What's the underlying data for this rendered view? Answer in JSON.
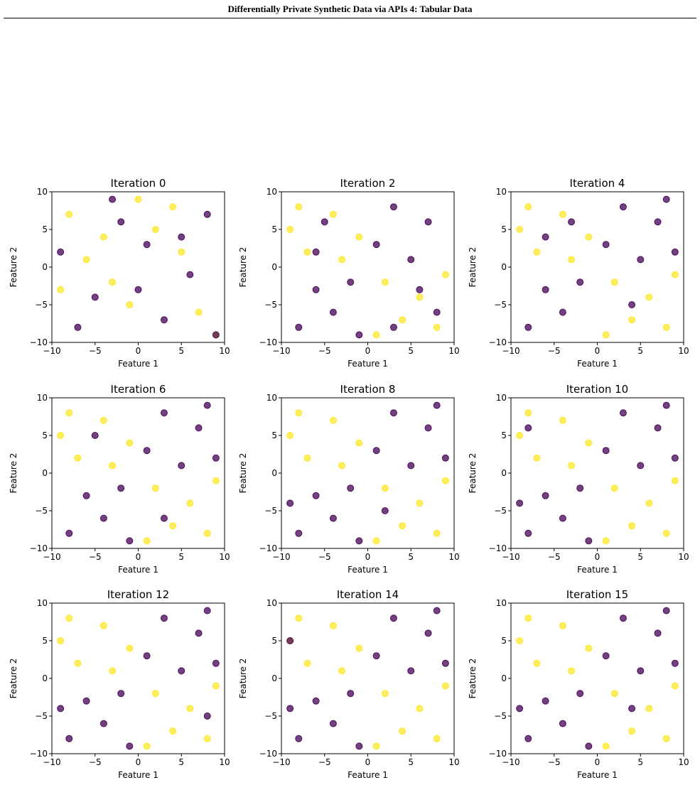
{
  "header": {
    "title": "Differentially Private Synthetic Data via APIs 4: Tabular Data"
  },
  "chart_data": [
    {
      "type": "scatter",
      "title": "Iteration 0",
      "xlabel": "Feature 1",
      "ylabel": "Feature 2",
      "xlim": [
        -10,
        10
      ],
      "ylim": [
        -10,
        10
      ],
      "xticks": [
        {
          "value": -10,
          "label": "−10"
        },
        {
          "value": -5,
          "label": "−5"
        },
        0,
        5,
        10
      ],
      "yticks": [
        {
          "value": -10,
          "label": "−10"
        },
        {
          "value": -5,
          "label": "−5"
        },
        0,
        5,
        10
      ],
      "series": [
        {
          "color": "#fde725",
          "x": [
            -8,
            -3,
            2,
            7,
            -6,
            4,
            9,
            -1,
            -9,
            5,
            0,
            -4
          ],
          "y": [
            7,
            -2,
            5,
            -6,
            1,
            8,
            -9,
            -5,
            -3,
            2,
            9,
            4
          ]
        },
        {
          "color": "#440154",
          "x": [
            -7,
            1,
            6,
            -2,
            8,
            -5,
            3,
            -9,
            5,
            0,
            -3,
            9
          ],
          "y": [
            -8,
            3,
            -1,
            6,
            7,
            -4,
            -7,
            2,
            4,
            -3,
            9,
            -9
          ]
        }
      ]
    },
    {
      "type": "scatter",
      "title": "Iteration 2",
      "xlabel": "Feature 1",
      "ylabel": "Feature 2",
      "xlim": [
        -10,
        10
      ],
      "ylim": [
        -10,
        10
      ],
      "xticks": [
        {
          "value": -10,
          "label": "−10"
        },
        {
          "value": -5,
          "label": "−5"
        },
        0,
        5,
        10
      ],
      "yticks": [
        {
          "value": -10,
          "label": "−10"
        },
        {
          "value": -5,
          "label": "−5"
        },
        0,
        5,
        10
      ],
      "series": [
        {
          "color": "#fde725",
          "x": [
            -8,
            -4,
            -1,
            -7,
            -3,
            -9,
            2,
            6,
            8,
            4,
            1,
            9
          ],
          "y": [
            8,
            7,
            4,
            2,
            1,
            5,
            -2,
            -4,
            -8,
            -7,
            -9,
            -1
          ]
        },
        {
          "color": "#440154",
          "x": [
            3,
            7,
            1,
            -5,
            5,
            8,
            -2,
            -6,
            -8,
            -4,
            6,
            -1,
            -6,
            3
          ],
          "y": [
            8,
            6,
            3,
            6,
            1,
            -6,
            -2,
            -3,
            -8,
            -6,
            -3,
            -9,
            2,
            -8
          ]
        }
      ]
    },
    {
      "type": "scatter",
      "title": "Iteration 4",
      "xlabel": "Feature 1",
      "ylabel": "Feature 2",
      "xlim": [
        -10,
        10
      ],
      "ylim": [
        -10,
        10
      ],
      "xticks": [
        {
          "value": -10,
          "label": "−10"
        },
        {
          "value": -5,
          "label": "−5"
        },
        0,
        5,
        10
      ],
      "yticks": [
        {
          "value": -10,
          "label": "−10"
        },
        {
          "value": -5,
          "label": "−5"
        },
        0,
        5,
        10
      ],
      "series": [
        {
          "color": "#fde725",
          "x": [
            -8,
            -4,
            -1,
            -7,
            -3,
            -9,
            2,
            6,
            8,
            4,
            1,
            9
          ],
          "y": [
            8,
            7,
            4,
            2,
            1,
            5,
            -2,
            -4,
            -8,
            -7,
            -9,
            -1
          ]
        },
        {
          "color": "#440154",
          "x": [
            3,
            7,
            1,
            9,
            5,
            8,
            -2,
            -6,
            -8,
            -4,
            -6,
            4,
            -3
          ],
          "y": [
            8,
            6,
            3,
            2,
            1,
            9,
            -2,
            -3,
            -8,
            -6,
            4,
            -5,
            6
          ]
        }
      ]
    },
    {
      "type": "scatter",
      "title": "Iteration 6",
      "xlabel": "Feature 1",
      "ylabel": "Feature 2",
      "xlim": [
        -10,
        10
      ],
      "ylim": [
        -10,
        10
      ],
      "xticks": [
        {
          "value": -10,
          "label": "−10"
        },
        {
          "value": -5,
          "label": "−5"
        },
        0,
        5,
        10
      ],
      "yticks": [
        {
          "value": -10,
          "label": "−10"
        },
        {
          "value": -5,
          "label": "−5"
        },
        0,
        5,
        10
      ],
      "series": [
        {
          "color": "#fde725",
          "x": [
            -8,
            -4,
            -1,
            -7,
            -3,
            -9,
            2,
            6,
            8,
            4,
            1,
            9
          ],
          "y": [
            8,
            7,
            4,
            2,
            1,
            5,
            -2,
            -4,
            -8,
            -7,
            -9,
            -1
          ]
        },
        {
          "color": "#440154",
          "x": [
            3,
            7,
            1,
            9,
            5,
            8,
            -2,
            -6,
            -8,
            -4,
            -1,
            -5,
            3
          ],
          "y": [
            8,
            6,
            3,
            2,
            1,
            9,
            -2,
            -3,
            -8,
            -6,
            -9,
            5,
            -6
          ]
        }
      ]
    },
    {
      "type": "scatter",
      "title": "Iteration 8",
      "xlabel": "Feature 1",
      "ylabel": "Feature 2",
      "xlim": [
        -10,
        10
      ],
      "ylim": [
        -10,
        10
      ],
      "xticks": [
        {
          "value": -10,
          "label": "−10"
        },
        {
          "value": -5,
          "label": "−5"
        },
        0,
        5,
        10
      ],
      "yticks": [
        {
          "value": -10,
          "label": "−10"
        },
        {
          "value": -5,
          "label": "−5"
        },
        0,
        5,
        10
      ],
      "series": [
        {
          "color": "#fde725",
          "x": [
            -8,
            -4,
            -1,
            -7,
            -3,
            -9,
            2,
            6,
            8,
            4,
            1,
            9
          ],
          "y": [
            8,
            7,
            4,
            2,
            1,
            5,
            -2,
            -4,
            -8,
            -7,
            -9,
            -1
          ]
        },
        {
          "color": "#440154",
          "x": [
            3,
            7,
            1,
            9,
            5,
            8,
            -2,
            -6,
            -8,
            -4,
            -1,
            -9,
            2
          ],
          "y": [
            8,
            6,
            3,
            2,
            1,
            9,
            -2,
            -3,
            -8,
            -6,
            -9,
            -4,
            -5
          ]
        }
      ]
    },
    {
      "type": "scatter",
      "title": "Iteration 10",
      "xlabel": "Feature 1",
      "ylabel": "Feature 2",
      "xlim": [
        -10,
        10
      ],
      "ylim": [
        -10,
        10
      ],
      "xticks": [
        {
          "value": -10,
          "label": "−10"
        },
        {
          "value": -5,
          "label": "−5"
        },
        0,
        5,
        10
      ],
      "yticks": [
        {
          "value": -10,
          "label": "−10"
        },
        {
          "value": -5,
          "label": "−5"
        },
        0,
        5,
        10
      ],
      "series": [
        {
          "color": "#fde725",
          "x": [
            -8,
            -4,
            -1,
            -7,
            -3,
            -9,
            2,
            6,
            8,
            4,
            1,
            9
          ],
          "y": [
            8,
            7,
            4,
            2,
            1,
            5,
            -2,
            -4,
            -8,
            -7,
            -9,
            -1
          ]
        },
        {
          "color": "#440154",
          "x": [
            3,
            7,
            1,
            9,
            5,
            8,
            -2,
            -6,
            -8,
            -4,
            -1,
            -9,
            -8
          ],
          "y": [
            8,
            6,
            3,
            2,
            1,
            9,
            -2,
            -3,
            -8,
            -6,
            -9,
            -4,
            6
          ]
        }
      ]
    },
    {
      "type": "scatter",
      "title": "Iteration 12",
      "xlabel": "Feature 1",
      "ylabel": "Feature 2",
      "xlim": [
        -10,
        10
      ],
      "ylim": [
        -10,
        10
      ],
      "xticks": [
        {
          "value": -10,
          "label": "−10"
        },
        {
          "value": -5,
          "label": "−5"
        },
        0,
        5,
        10
      ],
      "yticks": [
        {
          "value": -10,
          "label": "−10"
        },
        {
          "value": -5,
          "label": "−5"
        },
        0,
        5,
        10
      ],
      "series": [
        {
          "color": "#fde725",
          "x": [
            -8,
            -4,
            -1,
            -7,
            -3,
            -9,
            2,
            6,
            8,
            4,
            1,
            9
          ],
          "y": [
            8,
            7,
            4,
            2,
            1,
            5,
            -2,
            -4,
            -8,
            -7,
            -9,
            -1
          ]
        },
        {
          "color": "#440154",
          "x": [
            3,
            7,
            1,
            9,
            5,
            8,
            -2,
            -6,
            -8,
            -4,
            -1,
            -9,
            8
          ],
          "y": [
            8,
            6,
            3,
            2,
            1,
            9,
            -2,
            -3,
            -8,
            -6,
            -9,
            -4,
            -5
          ]
        }
      ]
    },
    {
      "type": "scatter",
      "title": "Iteration 14",
      "xlabel": "Feature 1",
      "ylabel": "Feature 2",
      "xlim": [
        -10,
        10
      ],
      "ylim": [
        -10,
        10
      ],
      "xticks": [
        {
          "value": -10,
          "label": "−10"
        },
        {
          "value": -5,
          "label": "−5"
        },
        0,
        5,
        10
      ],
      "yticks": [
        {
          "value": -10,
          "label": "−10"
        },
        {
          "value": -5,
          "label": "−5"
        },
        0,
        5,
        10
      ],
      "series": [
        {
          "color": "#fde725",
          "x": [
            -8,
            -4,
            -1,
            -7,
            -3,
            -9,
            2,
            6,
            8,
            4,
            1,
            9
          ],
          "y": [
            8,
            7,
            4,
            2,
            1,
            5,
            -2,
            -4,
            -8,
            -7,
            -9,
            -1
          ]
        },
        {
          "color": "#440154",
          "x": [
            3,
            7,
            1,
            9,
            5,
            8,
            -2,
            -6,
            -8,
            -4,
            -1,
            -9,
            -9
          ],
          "y": [
            8,
            6,
            3,
            2,
            1,
            9,
            -2,
            -3,
            -8,
            -6,
            -9,
            -4,
            5
          ]
        }
      ]
    },
    {
      "type": "scatter",
      "title": "Iteration 15",
      "xlabel": "Feature 1",
      "ylabel": "Feature 2",
      "xlim": [
        -10,
        10
      ],
      "ylim": [
        -10,
        10
      ],
      "xticks": [
        {
          "value": -10,
          "label": "−10"
        },
        {
          "value": -5,
          "label": "−5"
        },
        0,
        5,
        10
      ],
      "yticks": [
        {
          "value": -10,
          "label": "−10"
        },
        {
          "value": -5,
          "label": "−5"
        },
        0,
        5,
        10
      ],
      "series": [
        {
          "color": "#fde725",
          "x": [
            -8,
            -4,
            -1,
            -7,
            -3,
            -9,
            2,
            6,
            8,
            4,
            1,
            9
          ],
          "y": [
            8,
            7,
            4,
            2,
            1,
            5,
            -2,
            -4,
            -8,
            -7,
            -9,
            -1
          ]
        },
        {
          "color": "#440154",
          "x": [
            3,
            7,
            1,
            9,
            5,
            8,
            -2,
            -6,
            -8,
            -4,
            -1,
            -9,
            4
          ],
          "y": [
            8,
            6,
            3,
            2,
            1,
            9,
            -2,
            -3,
            -8,
            -6,
            -9,
            -4,
            -4
          ]
        }
      ]
    }
  ]
}
